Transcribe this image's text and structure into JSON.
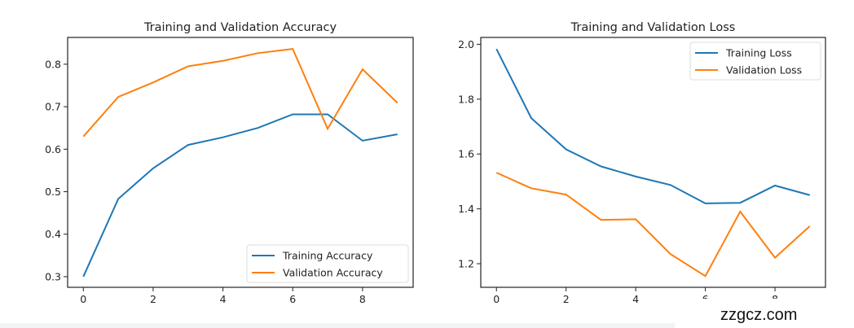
{
  "colors": {
    "training": "#1f77b4",
    "validation": "#ff7f0e"
  },
  "watermark": "zzgcz.com",
  "chart_data": [
    {
      "type": "line",
      "title": "Training and Validation Accuracy",
      "xlabel": "",
      "ylabel": "",
      "x": [
        0,
        1,
        2,
        3,
        4,
        5,
        6,
        7,
        8,
        9
      ],
      "xlim": [
        -0.45,
        9.45
      ],
      "ylim": [
        0.275,
        0.863
      ],
      "xticks": [
        0,
        2,
        4,
        6,
        8
      ],
      "yticks": [
        0.3,
        0.4,
        0.5,
        0.6,
        0.7,
        0.8
      ],
      "grid": false,
      "legend": "lower-right",
      "series": [
        {
          "name": "Training Accuracy",
          "color": "#1f77b4",
          "values": [
            0.3,
            0.483,
            0.555,
            0.61,
            0.628,
            0.65,
            0.682,
            0.682,
            0.62,
            0.635
          ]
        },
        {
          "name": "Validation Accuracy",
          "color": "#ff7f0e",
          "values": [
            0.63,
            0.723,
            0.757,
            0.795,
            0.808,
            0.826,
            0.836,
            0.648,
            0.788,
            0.709
          ]
        }
      ]
    },
    {
      "type": "line",
      "title": "Training and Validation Loss",
      "xlabel": "",
      "ylabel": "",
      "x": [
        0,
        1,
        2,
        3,
        4,
        5,
        6,
        7,
        8,
        9
      ],
      "xlim": [
        -0.45,
        9.45
      ],
      "ylim": [
        1.114,
        2.025
      ],
      "xticks": [
        0,
        2,
        4,
        6,
        8
      ],
      "yticks": [
        1.2,
        1.4,
        1.6,
        1.8,
        2.0
      ],
      "grid": false,
      "legend": "upper-right",
      "series": [
        {
          "name": "Training Loss",
          "color": "#1f77b4",
          "values": [
            1.983,
            1.731,
            1.617,
            1.555,
            1.518,
            1.487,
            1.42,
            1.422,
            1.485,
            1.45
          ]
        },
        {
          "name": "Validation Loss",
          "color": "#ff7f0e",
          "values": [
            1.532,
            1.475,
            1.452,
            1.36,
            1.362,
            1.235,
            1.155,
            1.39,
            1.222,
            1.337
          ]
        }
      ]
    }
  ]
}
